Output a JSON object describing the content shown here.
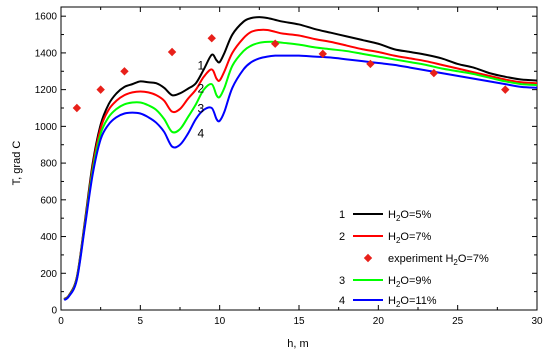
{
  "chart_data": {
    "type": "line",
    "xlabel": "h, m",
    "ylabel": "T, grad C",
    "xlim": [
      0,
      30
    ],
    "ylim": [
      0,
      1650
    ],
    "xticks": [
      "0",
      "5",
      "10",
      "15",
      "20",
      "25",
      "30"
    ],
    "yticks": [
      "0",
      "200",
      "400",
      "600",
      "800",
      "1000",
      "1200",
      "1400",
      "1600"
    ],
    "legend_position": "lower-right",
    "series": [
      {
        "id": "1",
        "h2o_pct": 5,
        "color": "#000000",
        "x": [
          0.2,
          0.5,
          1.0,
          1.5,
          2.0,
          2.5,
          3.0,
          3.5,
          4.0,
          4.5,
          5.0,
          5.5,
          6.0,
          6.5,
          7.0,
          7.5,
          8.0,
          8.5,
          9.0,
          9.5,
          9.8,
          10.0,
          10.3,
          10.8,
          11.5,
          12.0,
          12.5,
          13.0,
          13.5,
          14.0,
          15.0,
          16.0,
          17.0,
          18.0,
          19.0,
          20.0,
          21.0,
          22.0,
          23.0,
          24.0,
          25.0,
          26.0,
          27.0,
          28.0,
          29.0,
          30.0
        ],
        "y": [
          60,
          80,
          180,
          480,
          800,
          1010,
          1120,
          1180,
          1215,
          1230,
          1245,
          1240,
          1235,
          1210,
          1170,
          1180,
          1205,
          1235,
          1310,
          1390,
          1360,
          1350,
          1400,
          1500,
          1570,
          1590,
          1595,
          1590,
          1580,
          1570,
          1555,
          1530,
          1510,
          1490,
          1470,
          1450,
          1420,
          1405,
          1390,
          1370,
          1340,
          1320,
          1290,
          1270,
          1255,
          1250
        ]
      },
      {
        "id": "2",
        "h2o_pct": 7,
        "color": "#ff0000",
        "x": [
          0.2,
          0.5,
          1.0,
          1.5,
          2.0,
          2.5,
          3.0,
          3.5,
          4.0,
          4.5,
          5.0,
          5.5,
          6.0,
          6.5,
          7.0,
          7.5,
          8.0,
          8.5,
          9.0,
          9.5,
          9.8,
          10.0,
          10.3,
          10.8,
          11.5,
          12.0,
          12.5,
          13.0,
          13.5,
          14.0,
          15.0,
          16.0,
          17.0,
          18.0,
          19.0,
          20.0,
          21.0,
          22.0,
          23.0,
          24.0,
          25.0,
          26.0,
          27.0,
          28.0,
          29.0,
          30.0
        ],
        "y": [
          58,
          78,
          175,
          470,
          780,
          990,
          1090,
          1140,
          1170,
          1185,
          1190,
          1185,
          1170,
          1140,
          1080,
          1095,
          1150,
          1200,
          1270,
          1310,
          1260,
          1250,
          1300,
          1400,
          1480,
          1515,
          1525,
          1525,
          1515,
          1505,
          1495,
          1475,
          1460,
          1440,
          1420,
          1405,
          1385,
          1370,
          1355,
          1335,
          1315,
          1295,
          1275,
          1255,
          1240,
          1235
        ]
      },
      {
        "id": "3",
        "h2o_pct": 9,
        "color": "#00ff00",
        "x": [
          0.2,
          0.5,
          1.0,
          1.5,
          2.0,
          2.5,
          3.0,
          3.5,
          4.0,
          4.5,
          5.0,
          5.5,
          6.0,
          6.5,
          7.0,
          7.5,
          8.0,
          8.5,
          9.0,
          9.5,
          9.8,
          10.0,
          10.3,
          10.8,
          11.5,
          12.0,
          12.5,
          13.0,
          13.5,
          14.0,
          15.0,
          16.0,
          17.0,
          18.0,
          19.0,
          20.0,
          21.0,
          22.0,
          23.0,
          24.0,
          25.0,
          26.0,
          27.0,
          28.0,
          29.0,
          30.0
        ],
        "y": [
          56,
          76,
          170,
          460,
          760,
          960,
          1050,
          1095,
          1120,
          1130,
          1130,
          1115,
          1090,
          1040,
          970,
          985,
          1050,
          1120,
          1200,
          1230,
          1170,
          1160,
          1210,
          1330,
          1410,
          1440,
          1455,
          1460,
          1460,
          1455,
          1445,
          1430,
          1420,
          1410,
          1395,
          1380,
          1365,
          1350,
          1335,
          1315,
          1300,
          1285,
          1265,
          1245,
          1230,
          1225
        ]
      },
      {
        "id": "4",
        "h2o_pct": 11,
        "color": "#0000ff",
        "x": [
          0.2,
          0.5,
          1.0,
          1.5,
          2.0,
          2.5,
          3.0,
          3.5,
          4.0,
          4.5,
          5.0,
          5.5,
          6.0,
          6.5,
          7.0,
          7.5,
          8.0,
          8.5,
          9.0,
          9.5,
          9.8,
          10.0,
          10.3,
          10.8,
          11.5,
          12.0,
          12.5,
          13.0,
          13.5,
          14.0,
          15.0,
          16.0,
          17.0,
          18.0,
          19.0,
          20.0,
          21.0,
          22.0,
          23.0,
          24.0,
          25.0,
          26.0,
          27.0,
          28.0,
          29.0,
          30.0
        ],
        "y": [
          54,
          74,
          165,
          450,
          740,
          930,
          1010,
          1050,
          1070,
          1075,
          1070,
          1050,
          1020,
          970,
          890,
          900,
          960,
          1040,
          1090,
          1100,
          1040,
          1030,
          1080,
          1210,
          1310,
          1350,
          1370,
          1380,
          1385,
          1385,
          1385,
          1380,
          1375,
          1365,
          1355,
          1345,
          1335,
          1320,
          1305,
          1290,
          1275,
          1260,
          1245,
          1230,
          1215,
          1210
        ]
      }
    ],
    "experiment": {
      "color": "#e8201a",
      "x": [
        1.0,
        2.5,
        4.0,
        7.0,
        9.5,
        13.5,
        16.5,
        19.5,
        23.5,
        28.0
      ],
      "y": [
        1100,
        1200,
        1300,
        1405,
        1480,
        1450,
        1395,
        1340,
        1290,
        1200
      ]
    },
    "curve_labels": [
      {
        "text": "1",
        "x": 8.6,
        "y": 1310
      },
      {
        "text": "2",
        "x": 8.6,
        "y": 1185
      },
      {
        "text": "3",
        "x": 8.6,
        "y": 1075
      },
      {
        "text": "4",
        "x": 8.6,
        "y": 940
      }
    ],
    "legend": [
      {
        "num": "1",
        "kind": "line",
        "color": "#000000",
        "pre": "H",
        "sub": "2",
        "post": "O=5%"
      },
      {
        "num": "2",
        "kind": "line",
        "color": "#ff0000",
        "pre": "H",
        "sub": "2",
        "post": "O=7%"
      },
      {
        "num": "",
        "kind": "marker",
        "color": "#e8201a",
        "pre": "experiment H",
        "sub": "2",
        "post": "O=7%"
      },
      {
        "num": "3",
        "kind": "line",
        "color": "#00ff00",
        "pre": "H",
        "sub": "2",
        "post": "O=9%"
      },
      {
        "num": "4",
        "kind": "line",
        "color": "#0000ff",
        "pre": "H",
        "sub": "2",
        "post": "O=11%"
      }
    ]
  }
}
